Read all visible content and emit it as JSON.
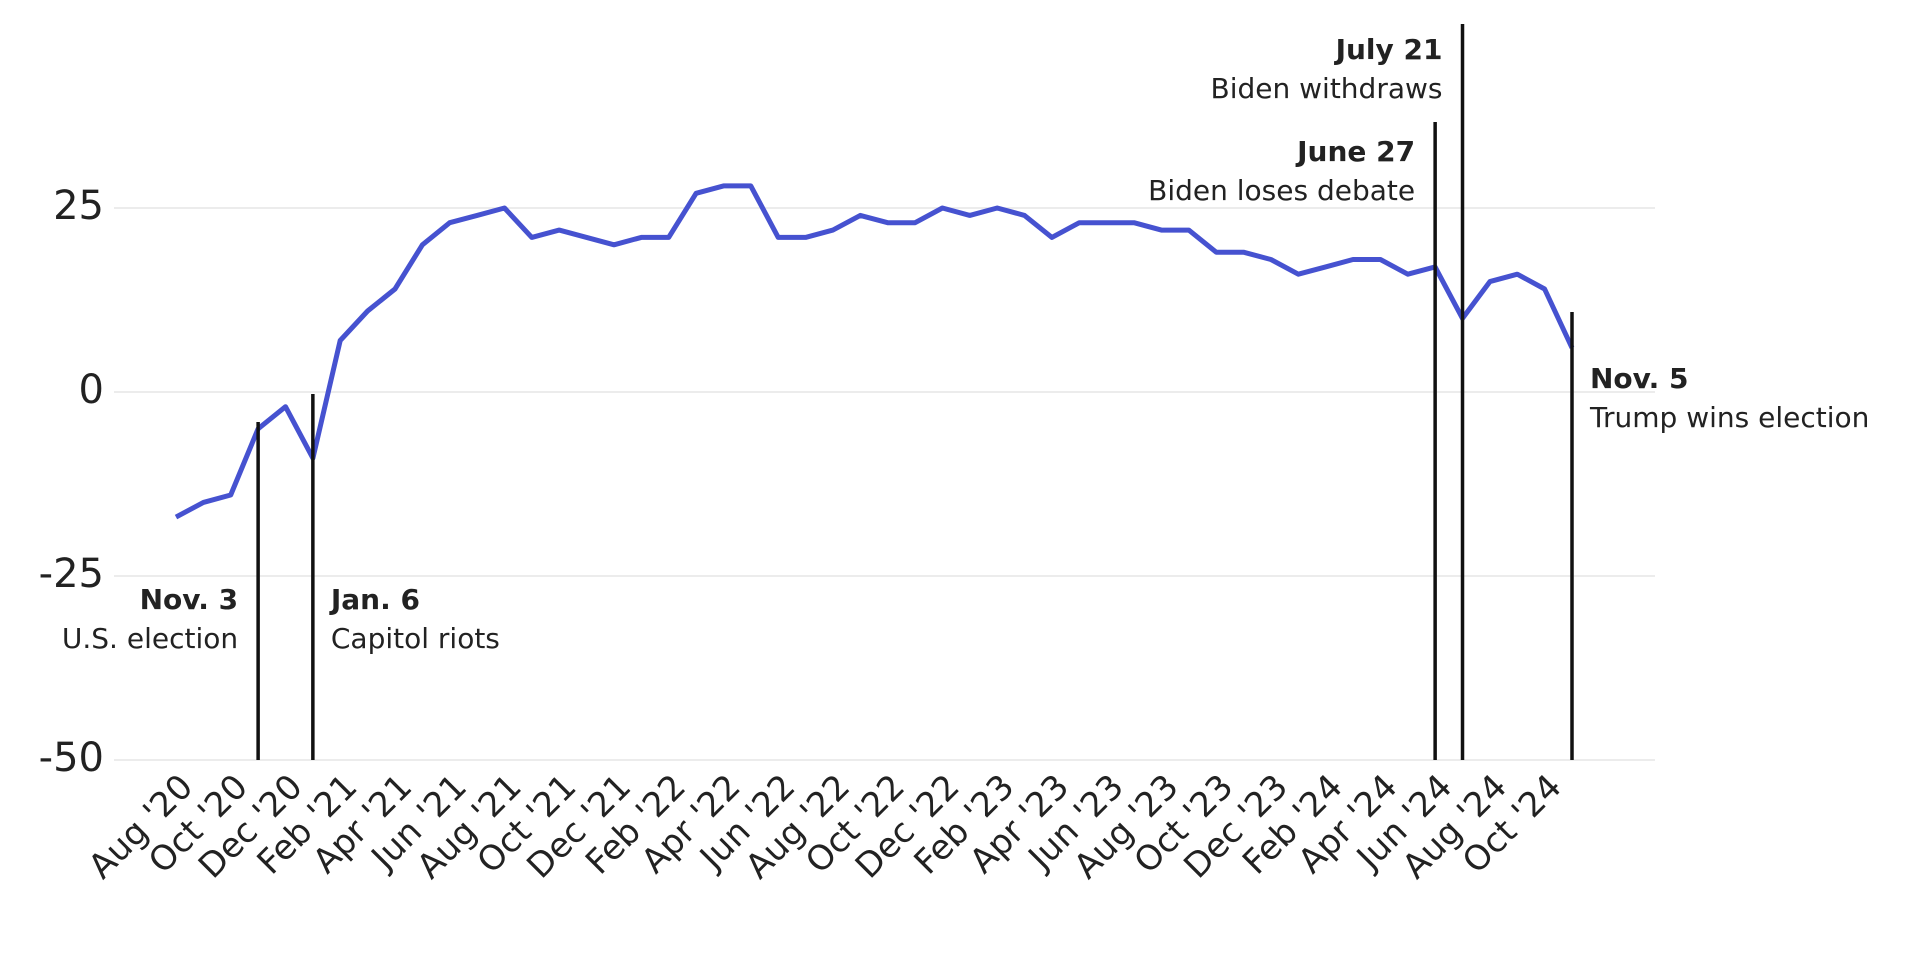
{
  "chart_data": {
    "type": "line",
    "x": [
      "2020-08",
      "2020-09",
      "2020-10",
      "2020-11",
      "2020-12",
      "2021-01",
      "2021-02",
      "2021-03",
      "2021-04",
      "2021-05",
      "2021-06",
      "2021-07",
      "2021-08",
      "2021-09",
      "2021-10",
      "2021-11",
      "2021-12",
      "2022-01",
      "2022-02",
      "2022-03",
      "2022-04",
      "2022-05",
      "2022-06",
      "2022-07",
      "2022-08",
      "2022-09",
      "2022-10",
      "2022-11",
      "2022-12",
      "2023-01",
      "2023-02",
      "2023-03",
      "2023-04",
      "2023-05",
      "2023-06",
      "2023-07",
      "2023-08",
      "2023-09",
      "2023-10",
      "2023-11",
      "2023-12",
      "2024-01",
      "2024-02",
      "2024-03",
      "2024-04",
      "2024-05",
      "2024-06",
      "2024-07",
      "2024-08",
      "2024-09",
      "2024-10",
      "2024-11"
    ],
    "series": [
      {
        "color": "#4652d0",
        "values": [
          -17,
          -15,
          -14,
          -5,
          -2,
          -9,
          7,
          11,
          14,
          20,
          23,
          24,
          25,
          21,
          22,
          21,
          20,
          21,
          21,
          27,
          28,
          28,
          21,
          21,
          22,
          24,
          23,
          23,
          25,
          24,
          25,
          24,
          21,
          23,
          23,
          23,
          22,
          22,
          19,
          19,
          18,
          16,
          17,
          18,
          18,
          16,
          17,
          10,
          15,
          16,
          14,
          6
        ]
      }
    ],
    "xlim": [
      "2020-08",
      "2024-11"
    ],
    "xticks": [
      {
        "value": "2020-08",
        "label": "Aug '20"
      },
      {
        "value": "2020-10",
        "label": "Oct '20"
      },
      {
        "value": "2020-12",
        "label": "Dec '20"
      },
      {
        "value": "2021-02",
        "label": "Feb '21"
      },
      {
        "value": "2021-04",
        "label": "Apr '21"
      },
      {
        "value": "2021-06",
        "label": "Jun '21"
      },
      {
        "value": "2021-08",
        "label": "Aug '21"
      },
      {
        "value": "2021-10",
        "label": "Oct '21"
      },
      {
        "value": "2021-12",
        "label": "Dec '21"
      },
      {
        "value": "2022-02",
        "label": "Feb '22"
      },
      {
        "value": "2022-04",
        "label": "Apr '22"
      },
      {
        "value": "2022-06",
        "label": "Jun '22"
      },
      {
        "value": "2022-08",
        "label": "Aug '22"
      },
      {
        "value": "2022-10",
        "label": "Oct '22"
      },
      {
        "value": "2022-12",
        "label": "Dec '22"
      },
      {
        "value": "2023-02",
        "label": "Feb '23"
      },
      {
        "value": "2023-04",
        "label": "Apr '23"
      },
      {
        "value": "2023-06",
        "label": "Jun '23"
      },
      {
        "value": "2023-08",
        "label": "Aug '23"
      },
      {
        "value": "2023-10",
        "label": "Oct '23"
      },
      {
        "value": "2023-12",
        "label": "Dec '23"
      },
      {
        "value": "2024-02",
        "label": "Feb '24"
      },
      {
        "value": "2024-04",
        "label": "Apr '24"
      },
      {
        "value": "2024-06",
        "label": "Jun '24"
      },
      {
        "value": "2024-08",
        "label": "Aug '24"
      },
      {
        "value": "2024-10",
        "label": "Oct '24"
      }
    ],
    "ylim": [
      -50,
      37.5
    ],
    "yticks": [
      -50,
      -25,
      0,
      25
    ],
    "grid": true,
    "annotations": [
      {
        "x": "2020-11",
        "date": "Nov. 3",
        "text": "U.S. election"
      },
      {
        "x": "2021-01",
        "date": "Jan. 6",
        "text": "Capitol riots"
      },
      {
        "x": "2024-06",
        "date": "June 27",
        "text": "Biden loses debate"
      },
      {
        "x": "2024-07",
        "date": "July 21",
        "text": "Biden withdraws"
      },
      {
        "x": "2024-11",
        "date": "Nov. 5",
        "text": "Trump wins election"
      }
    ]
  }
}
